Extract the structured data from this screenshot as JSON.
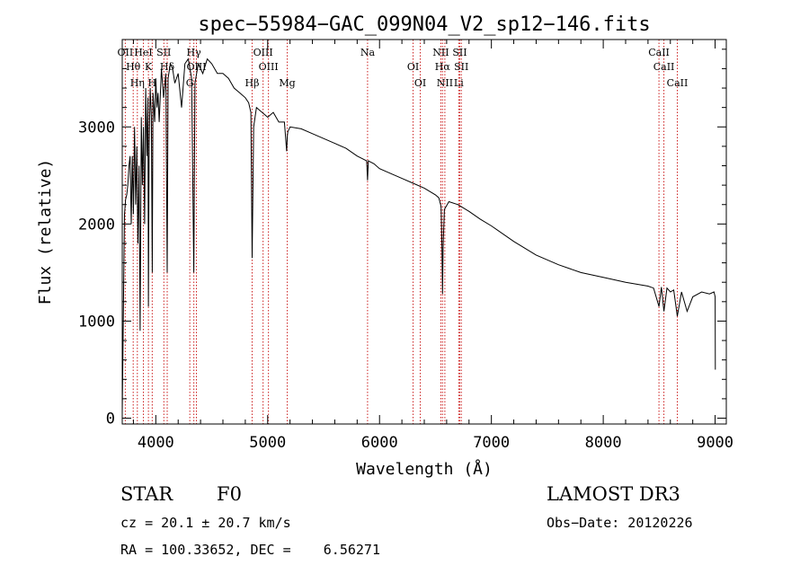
{
  "chart_data": {
    "type": "line",
    "title": "spec−55984−GAC_099N04_V2_sp12−146.fits",
    "xlabel": "Wavelength (Å)",
    "ylabel": "Flux (relative)",
    "xlim": [
      3700,
      9100
    ],
    "ylim": [
      -60,
      3900
    ],
    "x_ticks": [
      4000,
      5000,
      6000,
      7000,
      8000,
      9000
    ],
    "y_ticks": [
      0,
      1000,
      2000,
      3000
    ],
    "series": [
      {
        "name": "flux",
        "x": [
          3700,
          3710,
          3720,
          3730,
          3740,
          3750,
          3760,
          3770,
          3780,
          3790,
          3800,
          3810,
          3820,
          3830,
          3840,
          3850,
          3860,
          3870,
          3880,
          3890,
          3900,
          3910,
          3920,
          3930,
          3934,
          3940,
          3950,
          3960,
          3968,
          3975,
          3990,
          4000,
          4010,
          4020,
          4030,
          4050,
          4070,
          4090,
          4102,
          4110,
          4130,
          4150,
          4170,
          4200,
          4230,
          4260,
          4290,
          4320,
          4340,
          4350,
          4380,
          4420,
          4460,
          4500,
          4550,
          4600,
          4650,
          4700,
          4750,
          4800,
          4830,
          4850,
          4861,
          4875,
          4900,
          4950,
          5000,
          5050,
          5100,
          5150,
          5170,
          5175,
          5180,
          5200,
          5300,
          5400,
          5500,
          5600,
          5700,
          5800,
          5885,
          5893,
          5900,
          5950,
          6000,
          6100,
          6200,
          6300,
          6400,
          6500,
          6530,
          6550,
          6558,
          6563,
          6568,
          6580,
          6620,
          6700,
          6800,
          6900,
          7000,
          7200,
          7400,
          7600,
          7800,
          8000,
          8200,
          8400,
          8450,
          8498,
          8520,
          8542,
          8570,
          8600,
          8630,
          8662,
          8700,
          8750,
          8800,
          8880,
          8950,
          8990,
          9000,
          9002
        ],
        "values": [
          50,
          1050,
          2100,
          2250,
          2300,
          2400,
          2600,
          2700,
          2000,
          2700,
          2100,
          3000,
          2200,
          2800,
          1800,
          2600,
          900,
          3100,
          2400,
          3000,
          2000,
          3400,
          2700,
          3300,
          1150,
          2800,
          3400,
          3100,
          1500,
          3350,
          3050,
          3500,
          3200,
          3350,
          3050,
          3600,
          3300,
          3550,
          1500,
          3500,
          3650,
          3600,
          3450,
          3550,
          3200,
          3650,
          3700,
          3500,
          1500,
          3450,
          3650,
          3550,
          3700,
          3650,
          3550,
          3550,
          3500,
          3400,
          3350,
          3300,
          3250,
          3150,
          1650,
          3000,
          3200,
          3150,
          3100,
          3150,
          3050,
          3050,
          2750,
          2900,
          2950,
          3000,
          2980,
          2930,
          2880,
          2830,
          2780,
          2700,
          2650,
          2450,
          2650,
          2620,
          2570,
          2520,
          2470,
          2420,
          2370,
          2300,
          2270,
          2180,
          1750,
          1280,
          1750,
          2150,
          2230,
          2200,
          2130,
          2050,
          1980,
          1820,
          1680,
          1580,
          1500,
          1450,
          1400,
          1360,
          1340,
          1150,
          1350,
          1100,
          1340,
          1300,
          1320,
          1050,
          1300,
          1100,
          1250,
          1300,
          1280,
          1300,
          1250,
          500
        ]
      }
    ],
    "lines": [
      {
        "name": "OII",
        "wave": 3727
      },
      {
        "name": "Hθ",
        "wave": 3798
      },
      {
        "name": "Hη",
        "wave": 3835
      },
      {
        "name": "HeI",
        "wave": 3889
      },
      {
        "name": "K",
        "wave": 3934
      },
      {
        "name": "H",
        "wave": 3968
      },
      {
        "name": "SII",
        "wave": 4072
      },
      {
        "name": "Hδ",
        "wave": 4102
      },
      {
        "name": "G",
        "wave": 4304
      },
      {
        "name": "Hγ",
        "wave": 4340
      },
      {
        "name": "OIII",
        "wave": 4363
      },
      {
        "name": "Hβ",
        "wave": 4861
      },
      {
        "name": "OIII",
        "wave": 4959
      },
      {
        "name": "OIII",
        "wave": 5007
      },
      {
        "name": "Mg",
        "wave": 5175
      },
      {
        "name": "Na",
        "wave": 5893
      },
      {
        "name": "OI",
        "wave": 6300
      },
      {
        "name": "OI",
        "wave": 6364
      },
      {
        "name": "NII",
        "wave": 6548
      },
      {
        "name": "Hα",
        "wave": 6563
      },
      {
        "name": "NII",
        "wave": 6584
      },
      {
        "name": "SII",
        "wave": 6717
      },
      {
        "name": "SII",
        "wave": 6731
      },
      {
        "name": "Li",
        "wave": 6708
      },
      {
        "name": "CaII",
        "wave": 8498
      },
      {
        "name": "CaII",
        "wave": 8542
      },
      {
        "name": "CaII",
        "wave": 8662
      }
    ],
    "line_color": "#cc2020"
  },
  "info": {
    "object_type": "STAR",
    "subclass": "F0",
    "survey": "LAMOST DR3",
    "redshift": "cz = 20.1 ± 20.7 km/s",
    "obs_date": "Obs−Date: 20120226",
    "coords": "RA = 100.33652, DEC =    6.56271"
  }
}
